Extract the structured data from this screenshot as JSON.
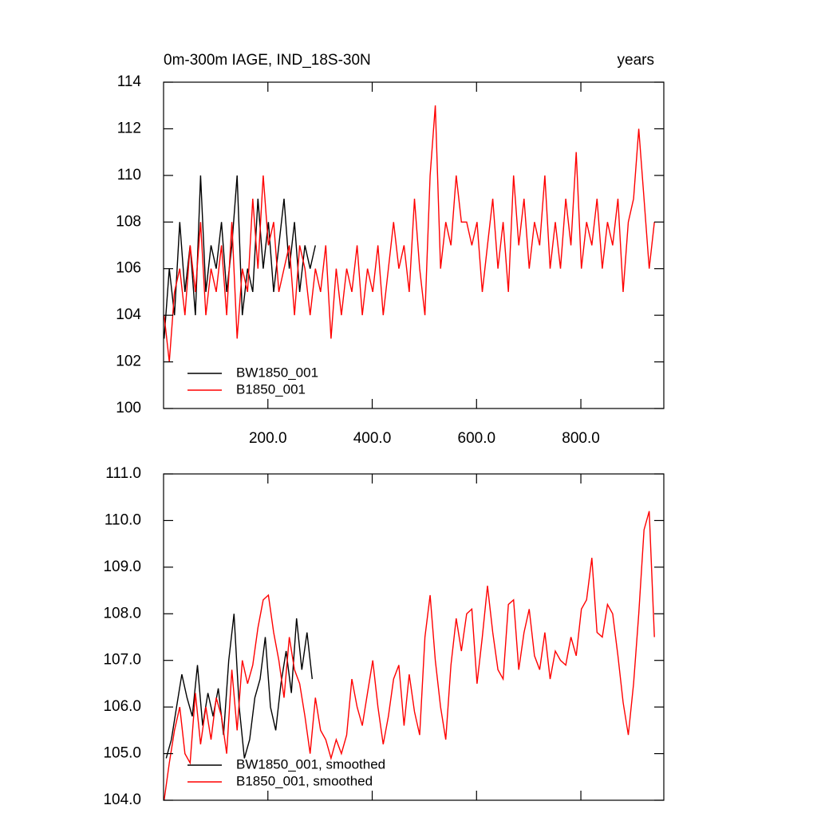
{
  "chart_data": [
    {
      "type": "line",
      "title": "0m-300m IAGE, IND_18S-30N",
      "subtitle": "years",
      "xlim": [
        0,
        959
      ],
      "ylim": [
        100,
        114
      ],
      "xticks": [
        {
          "value": 200,
          "label": "200.0"
        },
        {
          "value": 400,
          "label": "400.0"
        },
        {
          "value": 600,
          "label": "600.0"
        },
        {
          "value": 800,
          "label": "800.0"
        }
      ],
      "yticks": [
        100,
        102,
        104,
        106,
        108,
        110,
        112,
        114
      ],
      "legend": "lower left",
      "series": [
        {
          "name": "BW1850_001",
          "color": "#000000",
          "x": [
            1,
            11,
            21,
            31,
            41,
            51,
            61,
            71,
            81,
            91,
            101,
            111,
            121,
            131,
            141,
            151,
            161,
            171,
            181,
            191,
            201,
            211,
            221,
            231,
            241,
            251,
            261,
            271,
            281,
            291
          ],
          "values": [
            103,
            106,
            104,
            108,
            105,
            107,
            104,
            110,
            105,
            107,
            106,
            108,
            105,
            107,
            110,
            104,
            106,
            105,
            109,
            106,
            108,
            105,
            107,
            109,
            106,
            108,
            105,
            107,
            106,
            107
          ]
        },
        {
          "name": "B1850_001",
          "color": "#ff0000",
          "x": [
            1,
            11,
            21,
            31,
            41,
            51,
            61,
            71,
            81,
            91,
            101,
            111,
            121,
            131,
            141,
            151,
            161,
            171,
            181,
            191,
            201,
            211,
            221,
            231,
            241,
            251,
            261,
            271,
            281,
            291,
            301,
            311,
            321,
            331,
            341,
            351,
            361,
            371,
            381,
            391,
            401,
            411,
            421,
            431,
            441,
            451,
            461,
            471,
            481,
            491,
            501,
            511,
            521,
            531,
            541,
            551,
            561,
            571,
            581,
            591,
            601,
            611,
            621,
            631,
            641,
            651,
            661,
            671,
            681,
            691,
            701,
            711,
            721,
            731,
            741,
            751,
            761,
            771,
            781,
            791,
            801,
            811,
            821,
            831,
            841,
            851,
            861,
            871,
            881,
            891,
            901,
            911,
            921,
            931,
            941
          ],
          "values": [
            104,
            102,
            105,
            106,
            104,
            107,
            105,
            108,
            104,
            106,
            105,
            107,
            104,
            108,
            103,
            106,
            105,
            109,
            106,
            110,
            107,
            108,
            105,
            106,
            107,
            104,
            107,
            106,
            104,
            106,
            105,
            107,
            103,
            106,
            104,
            106,
            105,
            107,
            104,
            106,
            105,
            107,
            104,
            106,
            108,
            106,
            107,
            105,
            109,
            106,
            104,
            110,
            113,
            106,
            108,
            107,
            110,
            108,
            108,
            107,
            108,
            105,
            107,
            109,
            106,
            108,
            105,
            110,
            107,
            109,
            106,
            108,
            107,
            110,
            106,
            108,
            106,
            109,
            107,
            111,
            106,
            108,
            107,
            109,
            106,
            108,
            107,
            109,
            105,
            108,
            109,
            112,
            109,
            106,
            108
          ]
        }
      ]
    },
    {
      "type": "line",
      "xlim": [
        0,
        959
      ],
      "ylim": [
        104,
        111
      ],
      "xticks": [
        200,
        400,
        600,
        800
      ],
      "yticks": [
        {
          "value": 104,
          "label": "104.0"
        },
        {
          "value": 105,
          "label": "105.0"
        },
        {
          "value": 106,
          "label": "106.0"
        },
        {
          "value": 107,
          "label": "107.0"
        },
        {
          "value": 108,
          "label": "108.0"
        },
        {
          "value": 109,
          "label": "109.0"
        },
        {
          "value": 110,
          "label": "110.0"
        },
        {
          "value": 111,
          "label": "111.0"
        }
      ],
      "legend": "lower left",
      "series": [
        {
          "name": "BW1850_001, smoothed",
          "color": "#000000",
          "x": [
            5,
            15,
            25,
            35,
            45,
            55,
            65,
            75,
            85,
            95,
            105,
            115,
            125,
            135,
            145,
            155,
            165,
            175,
            185,
            195,
            205,
            215,
            225,
            235,
            245,
            255,
            265,
            275,
            285
          ],
          "values": [
            104.9,
            105.3,
            106.0,
            106.7,
            106.2,
            105.8,
            106.9,
            105.6,
            106.3,
            105.8,
            106.4,
            105.4,
            107.0,
            108.0,
            106.0,
            104.9,
            105.3,
            106.2,
            106.6,
            107.5,
            106.0,
            105.5,
            106.5,
            107.2,
            106.3,
            107.9,
            106.8,
            107.6,
            106.6
          ]
        },
        {
          "name": "B1850_001, smoothed",
          "color": "#ff0000",
          "x": [
            1,
            11,
            21,
            31,
            41,
            51,
            61,
            71,
            81,
            91,
            101,
            111,
            121,
            131,
            141,
            151,
            161,
            171,
            181,
            191,
            201,
            211,
            221,
            231,
            241,
            251,
            261,
            271,
            281,
            291,
            301,
            311,
            321,
            331,
            341,
            351,
            361,
            371,
            381,
            391,
            401,
            411,
            421,
            431,
            441,
            451,
            461,
            471,
            481,
            491,
            501,
            511,
            521,
            531,
            541,
            551,
            561,
            571,
            581,
            591,
            601,
            611,
            621,
            631,
            641,
            651,
            661,
            671,
            681,
            691,
            701,
            711,
            721,
            731,
            741,
            751,
            761,
            771,
            781,
            791,
            801,
            811,
            821,
            831,
            841,
            851,
            861,
            871,
            881,
            891,
            901,
            911,
            921,
            931,
            941
          ],
          "values": [
            104.0,
            104.8,
            105.5,
            106.0,
            105.0,
            104.8,
            106.3,
            105.2,
            106.0,
            105.3,
            106.2,
            105.8,
            105.0,
            106.8,
            105.5,
            107.0,
            106.5,
            106.9,
            107.7,
            108.3,
            108.4,
            107.6,
            107.0,
            106.2,
            107.5,
            106.8,
            106.5,
            105.8,
            105.0,
            106.2,
            105.5,
            105.3,
            104.9,
            105.3,
            105.0,
            105.4,
            106.6,
            106.0,
            105.6,
            106.3,
            107.0,
            106.0,
            105.2,
            105.8,
            106.6,
            106.9,
            105.6,
            106.7,
            105.9,
            105.4,
            107.5,
            108.4,
            107.0,
            106.0,
            105.3,
            106.9,
            107.9,
            107.2,
            108.0,
            108.1,
            106.5,
            107.5,
            108.6,
            107.6,
            106.8,
            106.6,
            108.2,
            108.3,
            106.8,
            107.6,
            108.1,
            107.1,
            106.8,
            107.6,
            106.6,
            107.2,
            107.0,
            106.9,
            107.5,
            107.1,
            108.1,
            108.3,
            109.2,
            107.6,
            107.5,
            108.2,
            108.0,
            107.1,
            106.1,
            105.4,
            106.5,
            108.0,
            109.8,
            110.2,
            107.5
          ]
        }
      ]
    }
  ]
}
